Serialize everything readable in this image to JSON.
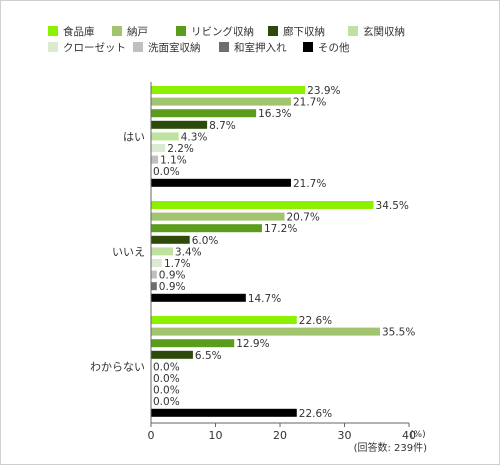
{
  "chart_data": {
    "type": "bar",
    "orientation": "horizontal",
    "categories": [
      "はい",
      "いいえ",
      "わからない"
    ],
    "series": [
      {
        "name": "食品庫",
        "color": "#8cf000",
        "values": [
          23.9,
          34.5,
          22.6
        ]
      },
      {
        "name": "納戸",
        "color": "#a3c46e",
        "values": [
          21.7,
          20.7,
          35.5
        ]
      },
      {
        "name": "リビング収納",
        "color": "#5b9c1c",
        "values": [
          16.3,
          17.2,
          12.9
        ]
      },
      {
        "name": "廊下収納",
        "color": "#2d4a0a",
        "values": [
          8.7,
          6.0,
          6.5
        ]
      },
      {
        "name": "玄関収納",
        "color": "#bfe2a0",
        "values": [
          4.3,
          3.4,
          0.0
        ]
      },
      {
        "name": "クローゼット",
        "color": "#dde9d0",
        "values": [
          2.2,
          1.7,
          0.0
        ]
      },
      {
        "name": "洗面室収納",
        "color": "#c0c0c0",
        "values": [
          1.1,
          0.9,
          0.0
        ]
      },
      {
        "name": "和室押入れ",
        "color": "#6e6e6e",
        "values": [
          0.0,
          0.9,
          0.0
        ]
      },
      {
        "name": "その他",
        "color": "#000000",
        "values": [
          21.7,
          14.7,
          22.6
        ]
      }
    ],
    "value_labels": [
      [
        "23.9%",
        "21.7%",
        "16.3%",
        "8.7%",
        "4.3%",
        "2.2%",
        "1.1%",
        "0.0%",
        "21.7%"
      ],
      [
        "34.5%",
        "20.7%",
        "17.2%",
        "6.0%",
        "3.4%",
        "1.7%",
        "0.9%",
        "0.9%",
        "14.7%"
      ],
      [
        "22.6%",
        "35.5%",
        "12.9%",
        "6.5%",
        "0.0%",
        "0.0%",
        "0.0%",
        "0.0%",
        "22.6%"
      ]
    ],
    "xlim": [
      0,
      40
    ],
    "xticks": [
      "0",
      "10",
      "20",
      "30",
      "40"
    ],
    "x_unit_label": "(%)",
    "note": "(回答数: 239件)",
    "legend_position": "top",
    "grid": false
  }
}
